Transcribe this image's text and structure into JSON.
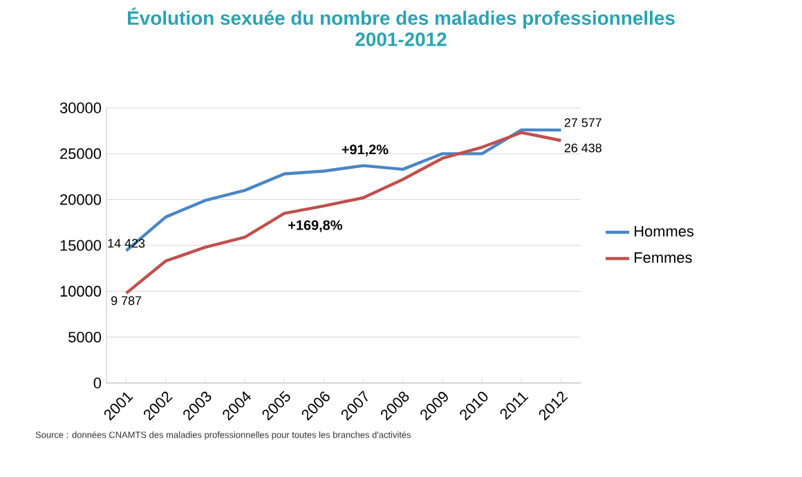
{
  "chart_data": {
    "type": "line",
    "title": "Évolution sexuée du nombre des maladies professionnelles",
    "subtitle": "2001-2012",
    "categories": [
      "2001",
      "2002",
      "2003",
      "2004",
      "2005",
      "2006",
      "2007",
      "2008",
      "2009",
      "2010",
      "2011",
      "2012"
    ],
    "series": [
      {
        "name": "Hommes",
        "color": "#4a86c5",
        "values": [
          14423,
          18100,
          19900,
          21000,
          22800,
          23100,
          23700,
          23300,
          25000,
          25000,
          27600,
          27577
        ],
        "value_labels": [
          "14 423",
          null,
          null,
          null,
          null,
          null,
          null,
          null,
          null,
          null,
          null,
          "27 577"
        ]
      },
      {
        "name": "Femmes",
        "color": "#c0504d",
        "values": [
          9787,
          13300,
          14800,
          15900,
          18500,
          19300,
          20200,
          22200,
          24500,
          25700,
          27300,
          26438
        ],
        "value_labels": [
          "9 787",
          null,
          null,
          null,
          null,
          null,
          null,
          null,
          null,
          null,
          null,
          "26 438"
        ]
      }
    ],
    "ylim": [
      0,
      30000
    ],
    "yticks": [
      0,
      5000,
      10000,
      15000,
      20000,
      25000,
      30000
    ],
    "grid": "y",
    "legend": "right",
    "marker": "none",
    "line_style": "solid",
    "annotations": [
      "+91,2%",
      "+169,8%",
      "Source : données CNAMTS des maladies professionnelles pour toutes les branches d'activités"
    ]
  }
}
